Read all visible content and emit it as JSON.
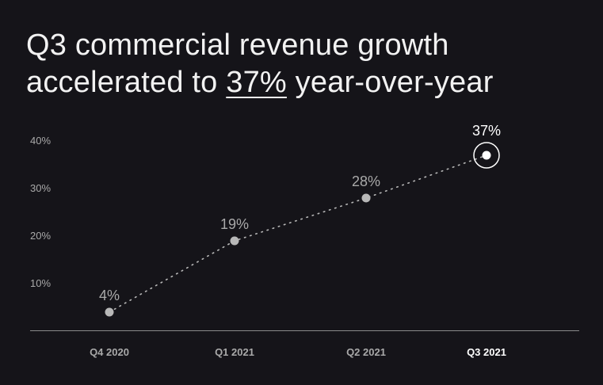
{
  "title": {
    "line1": "Q3 commercial revenue growth",
    "line2_prefix": "accelerated to ",
    "line2_highlight": "37%",
    "line2_suffix": " year-over-year"
  },
  "colors": {
    "background": "#151419",
    "text": "#f2f2f2",
    "muted": "#a9a9a9",
    "point": "#b8b8b8",
    "highlight": "#ffffff",
    "axis": "#8a8a8a"
  },
  "chart_data": {
    "type": "line",
    "line_style": "dotted",
    "categories": [
      "Q4 2020",
      "Q1 2021",
      "Q2 2021",
      "Q3 2021"
    ],
    "values": [
      4,
      19,
      28,
      37
    ],
    "data_labels": [
      "4%",
      "19%",
      "28%",
      "37%"
    ],
    "highlight_index": 3,
    "y_ticks": [
      10,
      20,
      30,
      40
    ],
    "y_tick_labels": [
      "10%",
      "20%",
      "30%",
      "40%"
    ],
    "ylim": [
      0,
      40
    ],
    "xlabel": "",
    "ylabel": "",
    "grid": false,
    "legend": "none"
  }
}
